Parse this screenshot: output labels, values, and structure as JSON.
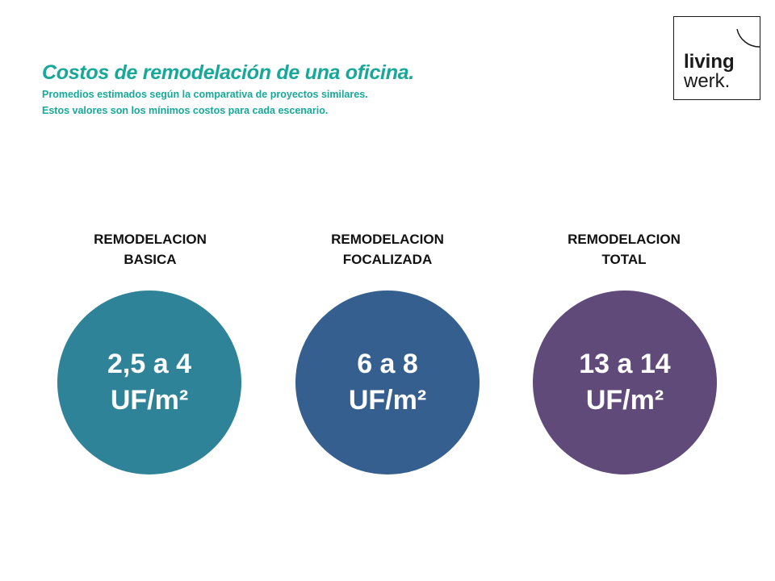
{
  "header": {
    "title": "Costos de remodelación de una oficina.",
    "subtitle_line1": "Promedios estimados según la comparativa de proyectos similares.",
    "subtitle_line2": "Estos valores son los mínimos costos para cada escenario.",
    "accent_color": "#17a89a"
  },
  "logo": {
    "line1": "living",
    "line2": "werk."
  },
  "scenarios": [
    {
      "label_line1": "REMODELACION",
      "label_line2": "BASICA",
      "value_line1": "2,5 a 4",
      "value_line2": "UF/m²",
      "color": "#2f8398"
    },
    {
      "label_line1": "REMODELACION",
      "label_line2": "FOCALIZADA",
      "value_line1": "6 a 8",
      "value_line2": "UF/m²",
      "color": "#355f8e"
    },
    {
      "label_line1": "REMODELACION",
      "label_line2": "TOTAL",
      "value_line1": "13 a 14",
      "value_line2": "UF/m²",
      "color": "#5f4a7a"
    }
  ]
}
